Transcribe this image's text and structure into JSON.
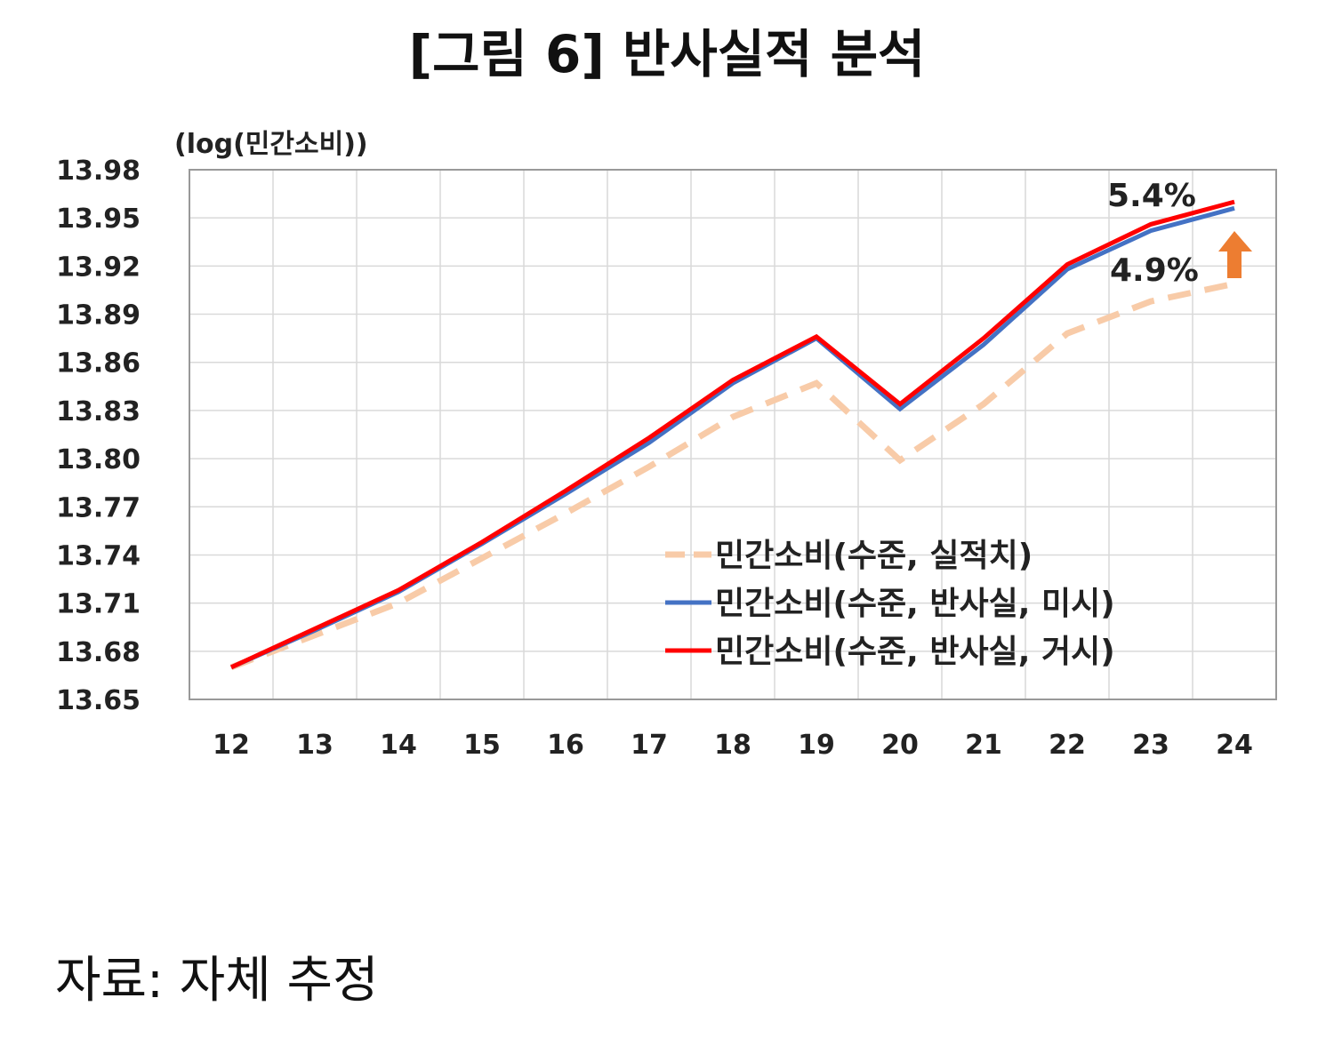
{
  "title": "[그림 6] 반사실적 분석",
  "source": "자료: 자체 추정",
  "chart_data": {
    "type": "line",
    "title": "[그림 6] 반사실적 분석",
    "ylabel": "(log(민간소비))",
    "xlabel": "",
    "x": [
      "12",
      "13",
      "14",
      "15",
      "16",
      "17",
      "18",
      "19",
      "20",
      "21",
      "22",
      "23",
      "24"
    ],
    "ylim": [
      13.65,
      13.98
    ],
    "yticks": [
      "13.98",
      "13.95",
      "13.92",
      "13.89",
      "13.86",
      "13.83",
      "13.80",
      "13.77",
      "13.74",
      "13.71",
      "13.68",
      "13.65"
    ],
    "grid": true,
    "legend_position": "bottom-right",
    "series": [
      {
        "name": "민간소비(수준, 실적치)",
        "color": "#f8cba8",
        "dashed": true,
        "values": [
          13.67,
          13.69,
          13.71,
          13.738,
          13.766,
          13.795,
          13.826,
          13.847,
          13.799,
          13.834,
          13.878,
          13.898,
          13.909
        ]
      },
      {
        "name": "민간소비(수준, 반사실, 미시)",
        "color": "#4472c4",
        "dashed": false,
        "values": [
          13.67,
          13.693,
          13.717,
          13.747,
          13.778,
          13.81,
          13.847,
          13.875,
          13.831,
          13.871,
          13.918,
          13.942,
          13.956
        ]
      },
      {
        "name": "민간소비(수준, 반사실, 거시)",
        "color": "#ff0000",
        "dashed": false,
        "values": [
          13.67,
          13.694,
          13.718,
          13.748,
          13.78,
          13.813,
          13.849,
          13.876,
          13.834,
          13.875,
          13.921,
          13.946,
          13.96
        ]
      }
    ],
    "annotations": [
      {
        "text": "5.4%",
        "color": "#ff0000"
      },
      {
        "text": "4.9%",
        "color": "#4472c4"
      }
    ],
    "arrow_color": "#ed7d31"
  }
}
